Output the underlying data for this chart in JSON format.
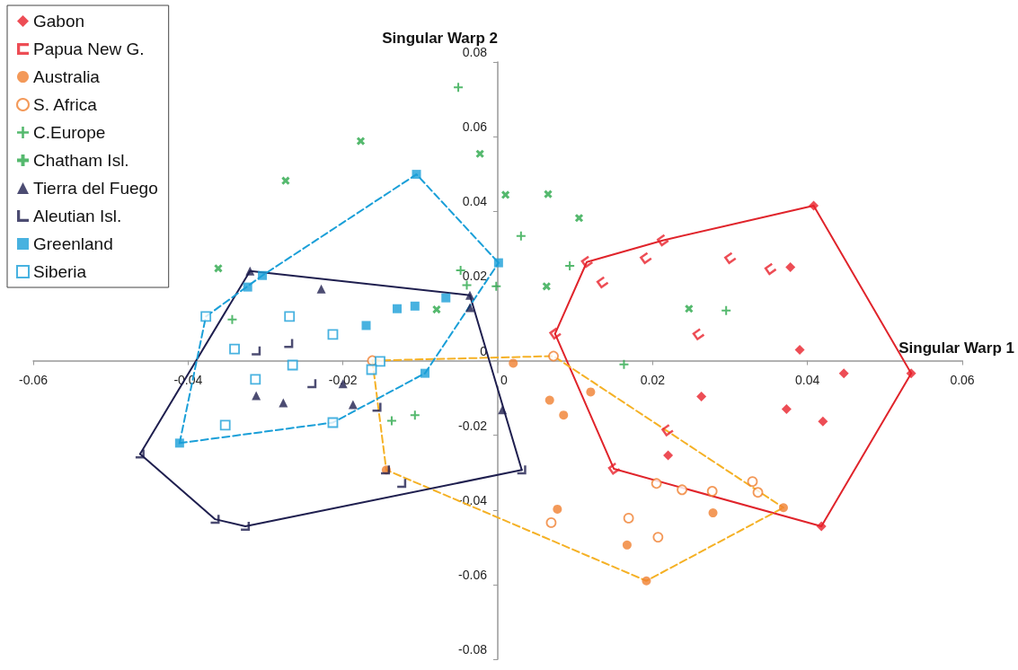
{
  "chart_data": {
    "type": "scatter",
    "xlabel": "Singular Warp 1",
    "ylabel": "Singular Warp 2",
    "xlim": [
      -0.06,
      0.06
    ],
    "xticks": [
      -0.06,
      -0.04,
      -0.02,
      0,
      0.02,
      0.04,
      0.06
    ],
    "ylim": [
      -0.08,
      0.08
    ],
    "yticks": [
      -0.08,
      -0.06,
      -0.04,
      -0.02,
      0,
      0.02,
      0.04,
      0.06,
      0.08
    ],
    "grid": false,
    "legend": "top left",
    "series": [
      {
        "name": "Gabon",
        "color": "#e8202a",
        "marker": "diamond",
        "x": [
          0.0408,
          0.0378,
          0.039,
          0.0534,
          0.0447,
          0.0263,
          0.0373,
          0.042,
          0.022,
          0.0418
        ],
        "values": [
          0.0415,
          0.025,
          0.0029,
          -0.0034,
          -0.0034,
          -0.0096,
          -0.013,
          -0.0163,
          -0.0254,
          -0.0444
        ]
      },
      {
        "name": "Papua New G.",
        "color": "#e8202a",
        "x": [
          0.0213,
          0.0115,
          0.0191,
          0.03,
          0.0352,
          0.0135,
          0.0074,
          0.0259,
          0.0219,
          0.015
        ],
        "values": [
          0.0322,
          0.0264,
          0.0274,
          0.0274,
          0.0245,
          0.0209,
          0.0072,
          0.007,
          -0.0187,
          -0.029
        ]
      },
      {
        "name": "Australia",
        "color": "#f07f2f",
        "marker": "circle",
        "x": [
          0.002,
          0.0067,
          0.0085,
          0.012,
          0.0077,
          0.0167,
          0.0192,
          0.0278,
          0.0369,
          -0.0144
        ],
        "values": [
          -0.0007,
          -0.0106,
          -0.0146,
          -0.0084,
          -0.0398,
          -0.0494,
          -0.059,
          -0.0408,
          -0.0394,
          -0.0293
        ]
      },
      {
        "name": "S. Africa",
        "color": "#f07f2f",
        "marker": "circle",
        "x": [
          -0.0162,
          0.0072,
          0.0205,
          0.0238,
          0.0277,
          0.0329,
          0.0336,
          0.0069,
          0.0169,
          0.0207
        ],
        "values": [
          0.0,
          0.0012,
          -0.0329,
          -0.0346,
          -0.035,
          -0.0324,
          -0.0353,
          -0.0434,
          -0.0422,
          -0.0473
        ]
      },
      {
        "name": "C.Europe",
        "color": "#2aa84a",
        "marker": "cross",
        "x": [
          -0.0051,
          0.003,
          -0.0048,
          -0.0002,
          0.0093,
          -0.004,
          -0.0343,
          0.0295,
          0.0163,
          -0.0137,
          -0.0107
        ],
        "values": [
          0.0732,
          0.0334,
          0.0242,
          0.0199,
          0.0254,
          0.0202,
          0.011,
          0.0134,
          -0.001,
          -0.0161,
          -0.0146
        ]
      },
      {
        "name": "Chatham Isl.",
        "color": "#2aa84a",
        "marker": "cross",
        "x": [
          -0.0177,
          -0.0023,
          0.001,
          0.0065,
          0.0105,
          0.0063,
          -0.0079,
          -0.0274,
          -0.0361,
          0.0247
        ],
        "values": [
          0.0588,
          0.0554,
          0.0444,
          0.0446,
          0.0382,
          0.0199,
          0.0137,
          0.0482,
          0.0247,
          0.0139
        ]
      },
      {
        "name": "Tierra del Fuego",
        "color": "#1f1f4f",
        "marker": "triangle",
        "x": [
          -0.032,
          -0.0228,
          -0.0036,
          -0.0036,
          -0.0312,
          -0.0277,
          -0.02,
          -0.0187,
          0.0006
        ],
        "values": [
          0.024,
          0.0192,
          0.0175,
          0.0142,
          -0.0094,
          -0.0113,
          -0.0062,
          -0.0118,
          -0.0132
        ]
      },
      {
        "name": "Aleutian Isl.",
        "color": "#1f1f4f",
        "x": [
          -0.0312,
          -0.027,
          -0.024,
          -0.0156,
          -0.0145,
          -0.0124,
          -0.0365,
          -0.0326,
          -0.0462,
          0.0031
        ],
        "values": [
          0.0026,
          0.0046,
          -0.0062,
          -0.0125,
          -0.0293,
          -0.0329,
          -0.0425,
          -0.0444,
          -0.025,
          -0.0293
        ]
      },
      {
        "name": "Greenland",
        "color": "#1a9fd8",
        "marker": "square",
        "x": [
          -0.0105,
          0.0001,
          -0.0304,
          -0.0323,
          -0.0067,
          -0.0107,
          -0.013,
          -0.017,
          -0.0094,
          -0.0411
        ],
        "values": [
          0.0499,
          0.0262,
          0.0228,
          0.0197,
          0.0168,
          0.0146,
          0.0139,
          0.0094,
          -0.0034,
          -0.0221
        ]
      },
      {
        "name": "Siberia",
        "color": "#1a9fd8",
        "marker": "square",
        "x": [
          -0.0377,
          -0.0269,
          -0.0213,
          -0.034,
          -0.0265,
          -0.0313,
          -0.0352,
          -0.0213,
          -0.0152,
          -0.0163
        ],
        "values": [
          0.0118,
          0.0118,
          0.007,
          0.0031,
          -0.0012,
          -0.005,
          -0.0173,
          -0.0166,
          -0.0002,
          -0.0024
        ]
      },
      {
        "type": "line",
        "color": "#e0242b",
        "line_style": "solid",
        "marker": "none",
        "x": [
          0.0074,
          0.0115,
          0.0213,
          0.0408,
          0.0534
        ],
        "values": [
          0.0072,
          0.0264,
          0.0322,
          0.0415,
          -0.0034
        ]
      },
      {
        "type": "line",
        "color": "#e0242b",
        "line_style": "solid",
        "marker": "none",
        "x": [
          0.0074,
          0.015,
          0.0418,
          0.0534
        ],
        "values": [
          0.0072,
          -0.029,
          -0.0444,
          -0.0034
        ]
      },
      {
        "type": "line",
        "color": "#f5b125",
        "line_style": "dashed",
        "marker": "none",
        "x": [
          -0.0162,
          0.0072,
          0.0369
        ],
        "values": [
          0.0,
          0.0012,
          -0.0394
        ]
      },
      {
        "type": "line",
        "color": "#f5b125",
        "line_style": "dashed",
        "marker": "none",
        "x": [
          -0.0162,
          -0.0144,
          0.0192,
          0.0369
        ],
        "values": [
          0.0,
          -0.0293,
          -0.059,
          -0.0394
        ]
      },
      {
        "type": "line",
        "color": "#1f1f4f",
        "line_style": "solid",
        "marker": "none",
        "x": [
          -0.0462,
          -0.032,
          -0.0036,
          0.0031
        ],
        "values": [
          -0.025,
          0.024,
          0.0175,
          -0.0293
        ]
      },
      {
        "type": "line",
        "color": "#1f1f4f",
        "line_style": "solid",
        "marker": "none",
        "x": [
          -0.0462,
          -0.0365,
          -0.0326,
          0.0031
        ],
        "values": [
          -0.025,
          -0.0425,
          -0.0444,
          -0.0293
        ]
      },
      {
        "type": "line",
        "color": "#1a9fd8",
        "line_style": "dashed",
        "marker": "none",
        "x": [
          -0.0411,
          -0.0377,
          -0.0304,
          -0.0105,
          0.0001
        ],
        "values": [
          -0.0221,
          0.0118,
          0.0228,
          0.0499,
          0.0262
        ]
      },
      {
        "type": "line",
        "color": "#1a9fd8",
        "line_style": "dashed",
        "marker": "none",
        "x": [
          -0.0411,
          -0.0213,
          -0.0094,
          0.0001
        ],
        "values": [
          -0.0221,
          -0.0166,
          -0.0034,
          0.0262
        ]
      }
    ]
  }
}
